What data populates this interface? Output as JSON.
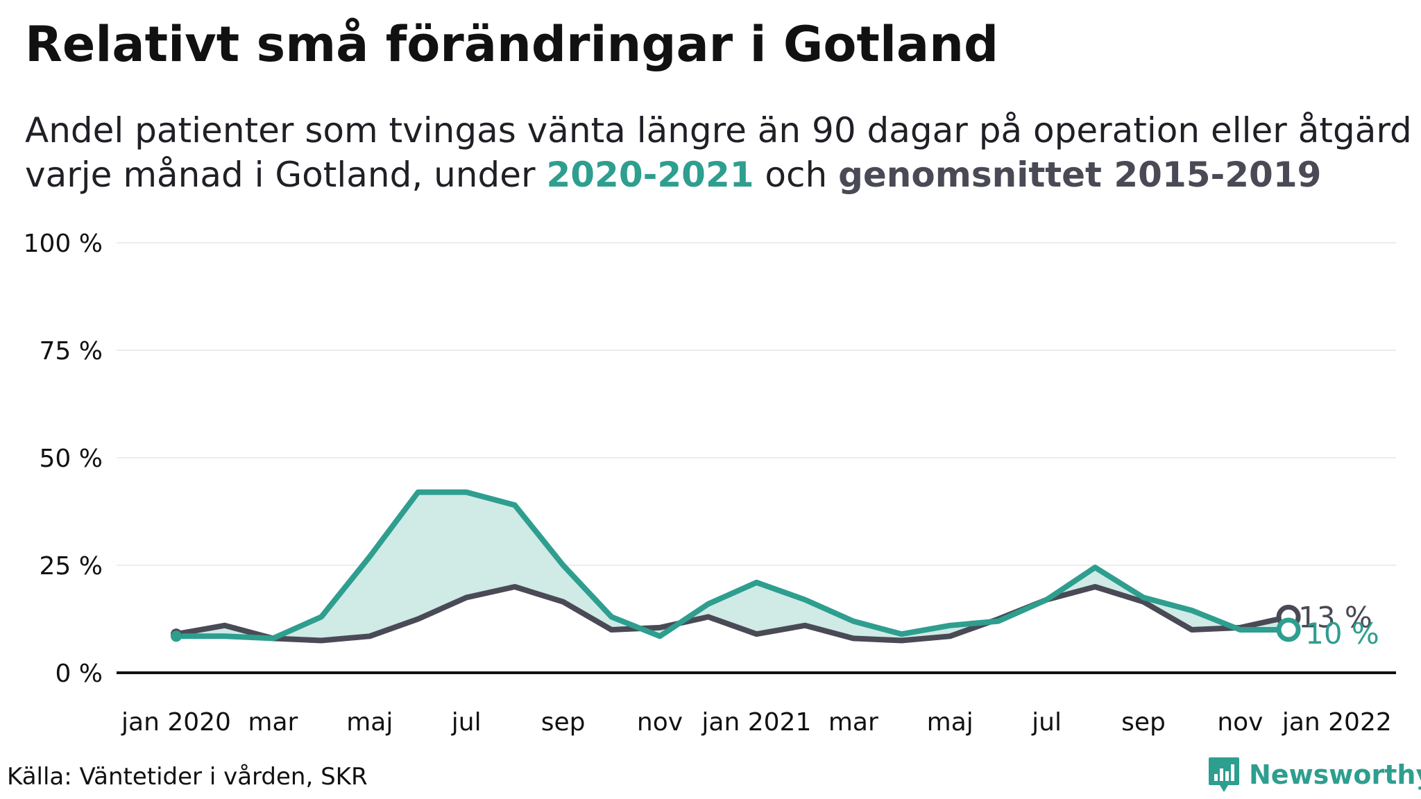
{
  "header": {
    "title": "Relativt små förändringar i Gotland",
    "subtitle_pre": "Andel patienter som tvingas vänta längre än 90 dagar på operation eller åtgärd",
    "subtitle_mid": "varje månad i Gotland, under ",
    "subtitle_hl1": "2020-2021",
    "subtitle_and": " och ",
    "subtitle_hl2": "genomsnittet 2015-2019"
  },
  "footer": {
    "source": "Källa: Väntetider i vården, SKR",
    "brand": "Newsworthy"
  },
  "colors": {
    "current": "#2e9e8f",
    "average": "#4a4a56",
    "fill": "#d0eae6",
    "grid": "#e6e6e6",
    "axis": "#111111"
  },
  "chart_data": {
    "type": "line",
    "x": [
      "2020-01",
      "2020-02",
      "2020-03",
      "2020-04",
      "2020-05",
      "2020-06",
      "2020-07",
      "2020-08",
      "2020-09",
      "2020-10",
      "2020-11",
      "2020-12",
      "2021-01",
      "2021-02",
      "2021-03",
      "2021-04",
      "2021-05",
      "2021-06",
      "2021-07",
      "2021-08",
      "2021-09",
      "2021-10",
      "2021-11",
      "2021-12"
    ],
    "x_ticks": [
      {
        "x": "2020-01",
        "label": "jan 2020"
      },
      {
        "x": "2020-03",
        "label": "mar"
      },
      {
        "x": "2020-05",
        "label": "maj"
      },
      {
        "x": "2020-07",
        "label": "jul"
      },
      {
        "x": "2020-09",
        "label": "sep"
      },
      {
        "x": "2020-11",
        "label": "nov"
      },
      {
        "x": "2021-01",
        "label": "jan 2021"
      },
      {
        "x": "2021-03",
        "label": "mar"
      },
      {
        "x": "2021-05",
        "label": "maj"
      },
      {
        "x": "2021-07",
        "label": "jul"
      },
      {
        "x": "2021-09",
        "label": "sep"
      },
      {
        "x": "2021-11",
        "label": "nov"
      },
      {
        "x": "2022-01",
        "label": "jan 2022"
      }
    ],
    "y_ticks": [
      {
        "value": 0,
        "label": "0 %"
      },
      {
        "value": 25,
        "label": "25 %"
      },
      {
        "value": 50,
        "label": "50 %"
      },
      {
        "value": 75,
        "label": "75 %"
      },
      {
        "value": 100,
        "label": "100 %"
      }
    ],
    "ylim": [
      0,
      100
    ],
    "grid": true,
    "legend": "none",
    "series": [
      {
        "key": "current",
        "values": [
          8.5,
          8.5,
          8,
          13,
          27,
          42,
          42,
          39,
          25,
          13,
          8.5,
          16,
          21,
          17,
          12,
          9,
          11,
          12,
          17,
          24.5,
          17.5,
          14.5,
          10,
          10
        ],
        "end_label": "10 %"
      },
      {
        "key": "average",
        "values": [
          9,
          11,
          8,
          7.5,
          8.5,
          12.5,
          17.5,
          20,
          16.5,
          10,
          10.5,
          13,
          9,
          11,
          8,
          7.5,
          8.5,
          12.5,
          17,
          20,
          16.5,
          10,
          10.5,
          13
        ],
        "end_label": "13 %"
      }
    ]
  }
}
